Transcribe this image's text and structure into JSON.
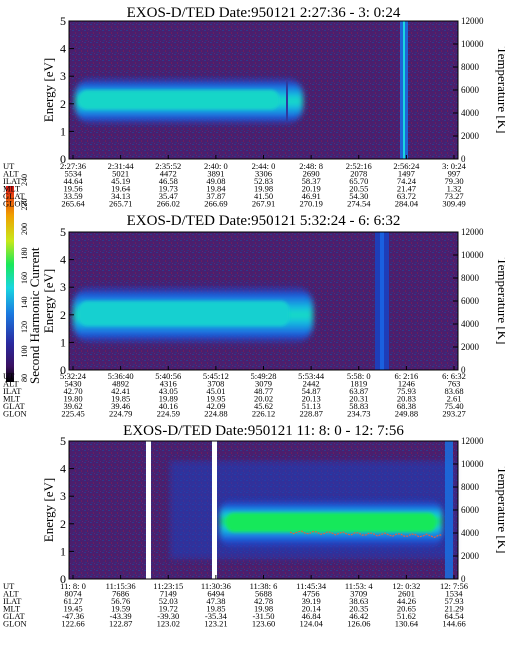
{
  "colors": {
    "background": "#4a1f6e",
    "plot_dark": "#3b2b6f",
    "band_inner": "#19e85a",
    "band_mid": "#19bde0",
    "band_outer": "#1a4fe0"
  },
  "colorbar": {
    "label": "Second Harmonic Current",
    "ticks": [
      "80",
      "100",
      "120",
      "140",
      "160",
      "180",
      "200",
      "220",
      "240"
    ],
    "range": [
      80,
      240
    ]
  },
  "chart_data": [
    {
      "type": "heatmap",
      "title": "EXOS-D/TED   Date:950121   2:27:36 - 3: 0:24",
      "ylabel": "Energy [eV]",
      "ylabel_right": "Temperature [K]",
      "yticks": [
        "0",
        "1",
        "2",
        "3",
        "4",
        "5"
      ],
      "yticks_right": [
        "0",
        "2000",
        "4000",
        "6000",
        "8000",
        "10000",
        "12000"
      ],
      "ylim": [
        0,
        5
      ],
      "ylim_right": [
        0,
        12000
      ],
      "ephemeris": {
        "row_labels": [
          "UT",
          "ALT",
          "ILAT",
          "MLT",
          "GLAT",
          "GLON"
        ],
        "columns": [
          [
            "2:27:36",
            "5534",
            "44.64",
            "19.56",
            "33.59",
            "265.64"
          ],
          [
            "2:31:44",
            "5021",
            "45.19",
            "19.64",
            "34.13",
            "265.71"
          ],
          [
            "2:35:52",
            "4472",
            "46.58",
            "19.73",
            "35.47",
            "266.02"
          ],
          [
            "2:40: 0",
            "3891",
            "49.08",
            "19.84",
            "37.87",
            "266.69"
          ],
          [
            "2:44: 0",
            "3306",
            "52.83",
            "19.98",
            "41.50",
            "267.91"
          ],
          [
            "2:48: 8",
            "2690",
            "58.37",
            "20.19",
            "46.91",
            "270.19"
          ],
          [
            "2:52:16",
            "2078",
            "65.70",
            "20.55",
            "54.30",
            "274.54"
          ],
          [
            "2:56:24",
            "1497",
            "74.24",
            "21.47",
            "63.72",
            "284.04"
          ],
          [
            "3: 0:24",
            "997",
            "79.30",
            "1.32",
            "73.27",
            "309.49"
          ]
        ]
      }
    },
    {
      "type": "heatmap",
      "title": "EXOS-D/TED   Date:950121   5:32:24 - 6: 6:32",
      "ylabel": "Energy [eV]",
      "ylabel_right": "Temperature [K]",
      "yticks": [
        "0",
        "1",
        "2",
        "3",
        "4",
        "5"
      ],
      "yticks_right": [
        "0",
        "2000",
        "4000",
        "6000",
        "8000",
        "10000",
        "12000"
      ],
      "ylim": [
        0,
        5
      ],
      "ylim_right": [
        0,
        12000
      ],
      "ephemeris": {
        "row_labels": [
          "UT",
          "ALT",
          "ILAT",
          "MLT",
          "GLAT",
          "GLON"
        ],
        "columns": [
          [
            "5:32:24",
            "5430",
            "42.70",
            "19.80",
            "39.62",
            "225.45"
          ],
          [
            "5:36:40",
            "4892",
            "42.41",
            "19.85",
            "39.46",
            "224.79"
          ],
          [
            "5:40:56",
            "4316",
            "43.05",
            "19.89",
            "40.16",
            "224.59"
          ],
          [
            "5:45:12",
            "3708",
            "45.01",
            "19.95",
            "42.09",
            "224.88"
          ],
          [
            "5:49:28",
            "3079",
            "48.77",
            "20.02",
            "45.62",
            "226.12"
          ],
          [
            "5:53:44",
            "2442",
            "54.87",
            "20.13",
            "51.13",
            "228.87"
          ],
          [
            "5:58: 0",
            "1819",
            "63.87",
            "20.31",
            "58.83",
            "234.73"
          ],
          [
            "6: 2:16",
            "1246",
            "75.93",
            "20.83",
            "68.38",
            "249.88"
          ],
          [
            "6: 6:32",
            "763",
            "83.68",
            "2.61",
            "75.40",
            "293.27"
          ]
        ]
      }
    },
    {
      "type": "heatmap",
      "title": "EXOS-D/TED   Date:950121   11: 8: 0 - 12: 7:56",
      "ylabel": "Energy [eV]",
      "ylabel_right": "Temperature [K]",
      "yticks": [
        "0",
        "1",
        "2",
        "3",
        "4",
        "5"
      ],
      "yticks_right": [
        "0",
        "2000",
        "4000",
        "6000",
        "8000",
        "10000",
        "12000"
      ],
      "ylim": [
        0,
        5
      ],
      "ylim_right": [
        0,
        12000
      ],
      "ephemeris": {
        "row_labels": [
          "UT",
          "ALT",
          "ILAT",
          "MLT",
          "GLAT",
          "GLON"
        ],
        "columns": [
          [
            "11: 8: 0",
            "8074",
            "61.27",
            "19.45",
            "-47.36",
            "122.66"
          ],
          [
            "11:15:36",
            "7686",
            "56.76",
            "19.59",
            "-43.39",
            "122.87"
          ],
          [
            "11:23:15",
            "7149",
            "52.03",
            "19.72",
            "-39.30",
            "123.02"
          ],
          [
            "11:30:36",
            "6494",
            "47.38",
            "19.85",
            "-35.34",
            "123.21"
          ],
          [
            "11:38: 6",
            "5688",
            "42.78",
            "19.98",
            "-31.50",
            "123.60"
          ],
          [
            "11:45:34",
            "4756",
            "39.19",
            "20.14",
            "46.84",
            "124.04"
          ],
          [
            "11:53: 4",
            "3709",
            "38.63",
            "20.35",
            "46.42",
            "126.06"
          ],
          [
            "12: 0:32",
            "2601",
            "44.26",
            "20.65",
            "51.62",
            "130.64"
          ],
          [
            "12: 7:56",
            "1534",
            "57.93",
            "21.29",
            "64.54",
            "144.66"
          ]
        ]
      }
    }
  ]
}
